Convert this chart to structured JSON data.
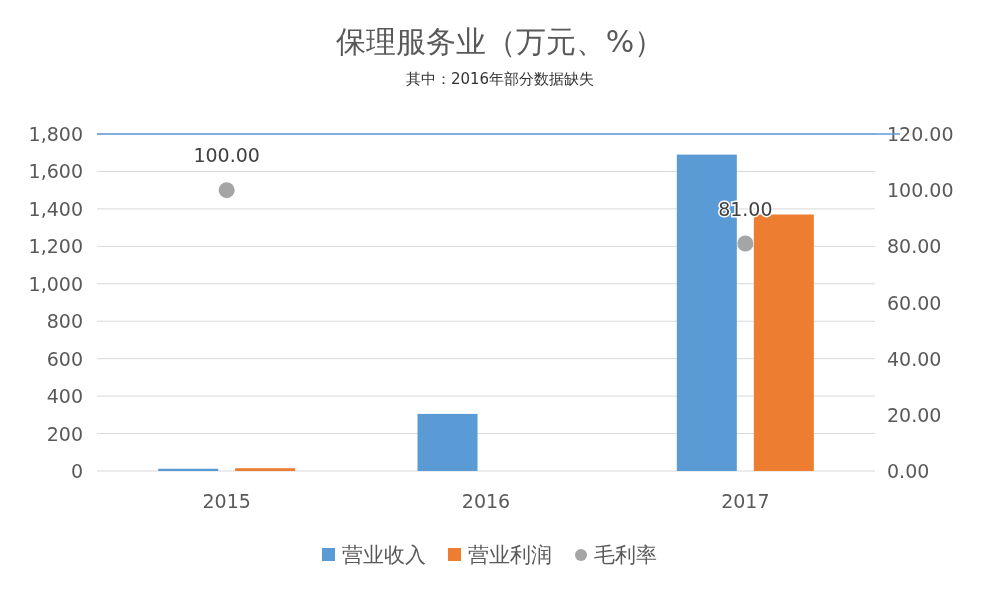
{
  "chart_data": {
    "type": "bar",
    "title": "保理服务业（万元、%）",
    "subtitle": "其中：2016年部分数据缺失",
    "categories": [
      "2015",
      "2016",
      "2017"
    ],
    "series": [
      {
        "name": "营业收入",
        "color": "#5b9bd5",
        "values": [
          12,
          305,
          1690
        ]
      },
      {
        "name": "营业利润",
        "color": "#ed7d31",
        "values": [
          15,
          null,
          1370
        ]
      },
      {
        "name": "毛利率",
        "type": "scatter",
        "axis": "y2",
        "color": "#a5a5a5",
        "marker": "circle",
        "values": [
          100,
          null,
          81
        ],
        "value_labels": [
          "100.00",
          null,
          "81.00"
        ]
      }
    ],
    "ylim": [
      0,
      1800
    ],
    "yticks": [
      0,
      {
        "value": 200,
        "label": "200"
      },
      {
        "value": 400,
        "label": "400"
      },
      {
        "value": 600,
        "label": "600"
      },
      {
        "value": 800,
        "label": "800"
      },
      {
        "value": 1000,
        "label": "1,000"
      },
      {
        "value": 1200,
        "label": "1,200"
      },
      {
        "value": 1400,
        "label": "1,400"
      },
      {
        "value": 1600,
        "label": "1,600"
      },
      {
        "value": 1800,
        "label": "1,800"
      }
    ],
    "y2lim": [
      0,
      120
    ],
    "y2ticks": [
      {
        "value": 0,
        "label": "0.00"
      },
      {
        "value": 20,
        "label": "20.00"
      },
      {
        "value": 40,
        "label": "40.00"
      },
      {
        "value": 60,
        "label": "60.00"
      },
      {
        "value": 80,
        "label": "80.00"
      },
      {
        "value": 100,
        "label": "100.00"
      },
      {
        "value": 120,
        "label": "120.00"
      }
    ],
    "ref_lines": [
      {
        "axis": "y",
        "value": 1800,
        "color": "#5b9bd5"
      }
    ],
    "grid": "y",
    "legend": "bottom"
  }
}
